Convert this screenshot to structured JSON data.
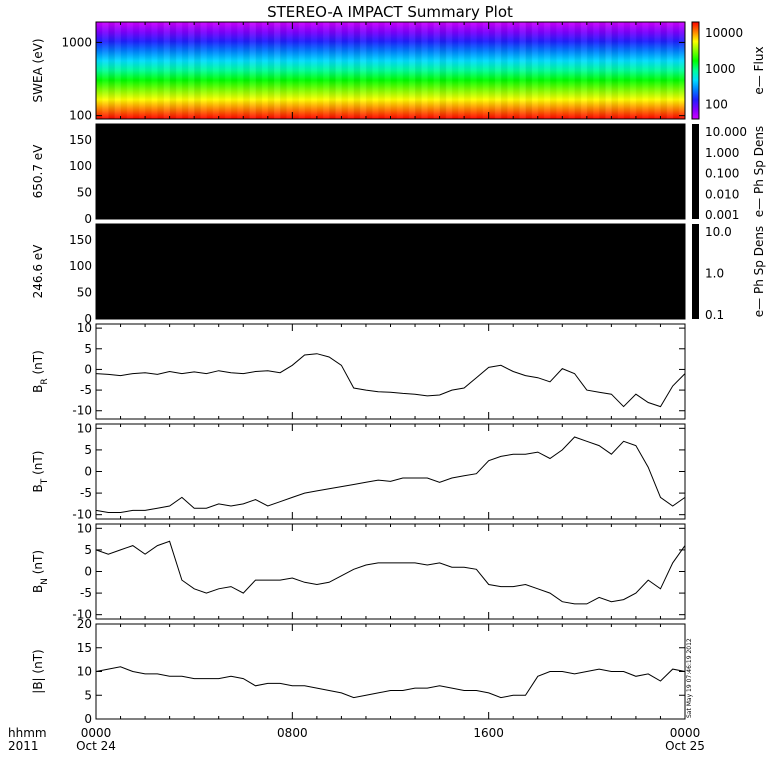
{
  "title": "STEREO-A IMPACT Summary Plot",
  "stamp": "Sat May 19 07:46:19 2012",
  "x_axis": {
    "row_label": "hhmm",
    "year_label": "2011",
    "ticks": [
      {
        "hour": 0,
        "label": "0000",
        "sub": "Oct 24"
      },
      {
        "hour": 8,
        "label": "0800",
        "sub": ""
      },
      {
        "hour": 16,
        "label": "1600",
        "sub": ""
      },
      {
        "hour": 24,
        "label": "0000",
        "sub": "Oct 25"
      }
    ]
  },
  "chart_data": [
    {
      "type": "heatmap",
      "ylabel": "SWEA (eV)",
      "yscale": "log",
      "ylim": [
        90,
        1900
      ],
      "yticks": [
        {
          "v": 1000,
          "label": "1000"
        },
        {
          "v": 100,
          "label": "100"
        }
      ],
      "colorbar": {
        "label": "e— Flux",
        "scale": "log",
        "range": [
          40,
          20000
        ],
        "ticks": [
          {
            "v": 10000,
            "label": "10000"
          },
          {
            "v": 1000,
            "label": "1000"
          },
          {
            "v": 100,
            "label": "100"
          }
        ],
        "colors": [
          "#ff0000",
          "#ff8000",
          "#ffff00",
          "#80ff00",
          "#00ff00",
          "#00ff99",
          "#00ddff",
          "#0080ff",
          "#2020ff",
          "#8000ff",
          "#d000ff"
        ]
      }
    },
    {
      "type": "heatmap",
      "ylabel": "650.7 eV",
      "ylim": [
        0,
        180
      ],
      "yticks": [
        {
          "v": 150,
          "label": "150"
        },
        {
          "v": 100,
          "label": "100"
        },
        {
          "v": 50,
          "label": "50"
        },
        {
          "v": 0,
          "label": "0"
        }
      ],
      "fill": "#000000",
      "colorbar": {
        "label": "e— Ph Sp Dens",
        "scale": "log",
        "ticks": [
          {
            "label": "10.000"
          },
          {
            "label": "1.000"
          },
          {
            "label": "0.100"
          },
          {
            "label": "0.010"
          },
          {
            "label": "0.001"
          }
        ],
        "fill": "#000000"
      }
    },
    {
      "type": "heatmap",
      "ylabel": "246.6 eV",
      "ylim": [
        0,
        180
      ],
      "yticks": [
        {
          "v": 150,
          "label": "150"
        },
        {
          "v": 100,
          "label": "100"
        },
        {
          "v": 50,
          "label": "50"
        },
        {
          "v": 0,
          "label": "0"
        }
      ],
      "fill": "#000000",
      "colorbar": {
        "label": "e— Ph Sp Dens",
        "scale": "log",
        "ticks": [
          {
            "label": "10.0"
          },
          {
            "label": "1.0"
          },
          {
            "label": "0.1"
          }
        ],
        "fill": "#000000"
      }
    },
    {
      "type": "line",
      "ylabel": "B",
      "ylabel_sub": "R",
      "ylabel_unit": "(nT)",
      "ylim": [
        -12,
        11
      ],
      "yticks": [
        {
          "v": 10,
          "label": "10"
        },
        {
          "v": 5,
          "label": "5"
        },
        {
          "v": 0,
          "label": "0"
        },
        {
          "v": -5,
          "label": "-5"
        },
        {
          "v": -10,
          "label": "-10"
        }
      ],
      "x": [
        0,
        0.5,
        1,
        1.5,
        2,
        2.5,
        3,
        3.5,
        4,
        4.5,
        5,
        5.5,
        6,
        6.5,
        7,
        7.5,
        8,
        8.5,
        9,
        9.5,
        10,
        10.5,
        11,
        11.5,
        12,
        12.5,
        13,
        13.5,
        14,
        14.5,
        15,
        15.5,
        16,
        16.5,
        17,
        17.5,
        18,
        18.5,
        19,
        19.5,
        20,
        20.5,
        21,
        21.5,
        22,
        22.5,
        23,
        23.5,
        24
      ],
      "values": [
        -1,
        -1.2,
        -1.5,
        -1,
        -0.8,
        -1.2,
        -0.5,
        -1,
        -0.6,
        -1,
        -0.3,
        -0.8,
        -1,
        -0.5,
        -0.3,
        -0.8,
        1,
        3.5,
        3.8,
        3,
        1,
        -4.5,
        -5,
        -5.4,
        -5.5,
        -5.8,
        -6,
        -6.4,
        -6.2,
        -5,
        -4.5,
        -2,
        0.5,
        1,
        -0.5,
        -1.5,
        -2,
        -3,
        0.2,
        -1,
        -5,
        -5.5,
        -6,
        -9,
        -6,
        -8,
        -9,
        -4,
        -1
      ]
    },
    {
      "type": "line",
      "ylabel": "B",
      "ylabel_sub": "T",
      "ylabel_unit": "(nT)",
      "ylim": [
        -11,
        11
      ],
      "yticks": [
        {
          "v": 10,
          "label": "10"
        },
        {
          "v": 5,
          "label": "5"
        },
        {
          "v": 0,
          "label": "0"
        },
        {
          "v": -5,
          "label": "-5"
        },
        {
          "v": -10,
          "label": "-10"
        }
      ],
      "x": [
        0,
        0.5,
        1,
        1.5,
        2,
        2.5,
        3,
        3.5,
        4,
        4.5,
        5,
        5.5,
        6,
        6.5,
        7,
        7.5,
        8,
        8.5,
        9,
        9.5,
        10,
        10.5,
        11,
        11.5,
        12,
        12.5,
        13,
        13.5,
        14,
        14.5,
        15,
        15.5,
        16,
        16.5,
        17,
        17.5,
        18,
        18.5,
        19,
        19.5,
        20,
        20.5,
        21,
        21.5,
        22,
        22.5,
        23,
        23.5,
        24
      ],
      "values": [
        -9,
        -9.5,
        -9.5,
        -9,
        -9,
        -8.5,
        -8,
        -6,
        -8.5,
        -8.5,
        -7.5,
        -8,
        -7.5,
        -6.5,
        -8,
        -7,
        -6,
        -5,
        -4.5,
        -4,
        -3.5,
        -3,
        -2.5,
        -2,
        -2.3,
        -1.5,
        -1.5,
        -1.5,
        -2.5,
        -1.5,
        -1,
        -0.5,
        2.5,
        3.5,
        4,
        4,
        4.5,
        3,
        5,
        8,
        7,
        6,
        4,
        7,
        6,
        1,
        -6,
        -8,
        -6
      ]
    },
    {
      "type": "line",
      "ylabel": "B",
      "ylabel_sub": "N",
      "ylabel_unit": "(nT)",
      "ylim": [
        -11,
        11
      ],
      "yticks": [
        {
          "v": 10,
          "label": "10"
        },
        {
          "v": 5,
          "label": "5"
        },
        {
          "v": 0,
          "label": "0"
        },
        {
          "v": -5,
          "label": "-5"
        },
        {
          "v": -10,
          "label": "-10"
        }
      ],
      "x": [
        0,
        0.5,
        1,
        1.5,
        2,
        2.5,
        3,
        3.5,
        4,
        4.5,
        5,
        5.5,
        6,
        6.5,
        7,
        7.5,
        8,
        8.5,
        9,
        9.5,
        10,
        10.5,
        11,
        11.5,
        12,
        12.5,
        13,
        13.5,
        14,
        14.5,
        15,
        15.5,
        16,
        16.5,
        17,
        17.5,
        18,
        18.5,
        19,
        19.5,
        20,
        20.5,
        21,
        21.5,
        22,
        22.5,
        23,
        23.5,
        24
      ],
      "values": [
        5,
        4,
        5,
        6,
        4,
        6,
        7,
        -2,
        -4,
        -5,
        -4,
        -3.5,
        -5,
        -2,
        -2,
        -2,
        -1.5,
        -2.5,
        -3,
        -2.5,
        -1,
        0.5,
        1.5,
        2,
        2,
        2,
        2,
        1.5,
        2,
        1,
        1,
        0.5,
        -3,
        -3.5,
        -3.5,
        -3,
        -4,
        -5,
        -7,
        -7.5,
        -7.5,
        -6,
        -7,
        -6.5,
        -5,
        -2,
        -4,
        2,
        6
      ]
    },
    {
      "type": "line",
      "ylabel": "|B| (nT)",
      "ylim": [
        0,
        20
      ],
      "yticks": [
        {
          "v": 20,
          "label": "20"
        },
        {
          "v": 15,
          "label": "15"
        },
        {
          "v": 10,
          "label": "10"
        },
        {
          "v": 5,
          "label": "5"
        },
        {
          "v": 0,
          "label": "0"
        }
      ],
      "x": [
        0,
        0.5,
        1,
        1.5,
        2,
        2.5,
        3,
        3.5,
        4,
        4.5,
        5,
        5.5,
        6,
        6.5,
        7,
        7.5,
        8,
        8.5,
        9,
        9.5,
        10,
        10.5,
        11,
        11.5,
        12,
        12.5,
        13,
        13.5,
        14,
        14.5,
        15,
        15.5,
        16,
        16.5,
        17,
        17.5,
        18,
        18.5,
        19,
        19.5,
        20,
        20.5,
        21,
        21.5,
        22,
        22.5,
        23,
        23.5,
        24
      ],
      "values": [
        10,
        10.5,
        11,
        10,
        9.5,
        9.5,
        9,
        9,
        8.5,
        8.5,
        8.5,
        9,
        8.5,
        7,
        7.5,
        7.5,
        7,
        7,
        6.5,
        6,
        5.5,
        4.5,
        5,
        5.5,
        6,
        6,
        6.5,
        6.5,
        7,
        6.5,
        6,
        6,
        5.5,
        4.5,
        5,
        5,
        9,
        10,
        10,
        9.5,
        10,
        10.5,
        10,
        10,
        9,
        9.5,
        8,
        10.5,
        10
      ]
    }
  ]
}
